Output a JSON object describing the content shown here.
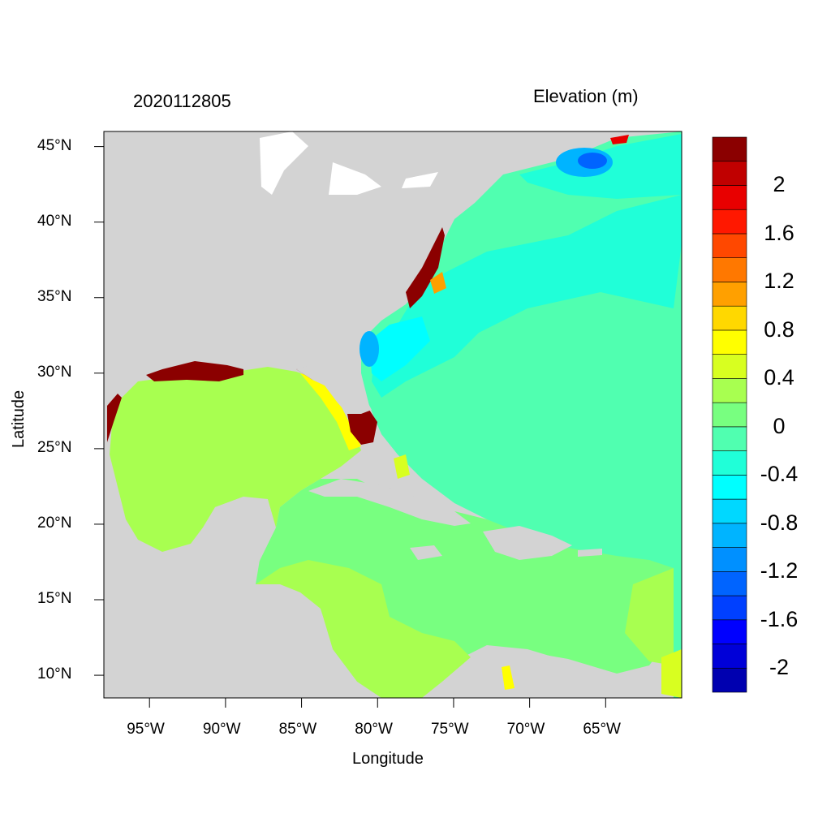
{
  "map": {
    "datetime": "2020112805",
    "field_label": "Elevation (m)",
    "xlabel": "Longitude",
    "ylabel": "Latitude",
    "lon_range": [
      -98,
      -60
    ],
    "lat_range": [
      8.5,
      46
    ],
    "lat_ticks": [
      {
        "value": 45,
        "label": "45°N"
      },
      {
        "value": 40,
        "label": "40°N"
      },
      {
        "value": 35,
        "label": "35°N"
      },
      {
        "value": 30,
        "label": "30°N"
      },
      {
        "value": 25,
        "label": "25°N"
      },
      {
        "value": 20,
        "label": "20°N"
      },
      {
        "value": 15,
        "label": "15°N"
      },
      {
        "value": 10,
        "label": "10°N"
      }
    ],
    "lon_ticks": [
      {
        "value": -95,
        "label": "95°W"
      },
      {
        "value": -90,
        "label": "90°W"
      },
      {
        "value": -85,
        "label": "85°W"
      },
      {
        "value": -80,
        "label": "80°W"
      },
      {
        "value": -75,
        "label": "75°W"
      },
      {
        "value": -70,
        "label": "70°W"
      },
      {
        "value": -65,
        "label": "65°W"
      }
    ],
    "land_color": "#d3d3d3"
  },
  "colorbar": {
    "colors": [
      "#0000b0",
      "#0000d8",
      "#0000ff",
      "#0040ff",
      "#0064ff",
      "#0090ff",
      "#00b4ff",
      "#00d8ff",
      "#00ffff",
      "#20ffd8",
      "#50ffb0",
      "#78ff80",
      "#a8ff50",
      "#d8ff20",
      "#ffff00",
      "#ffd800",
      "#ffa000",
      "#ff7800",
      "#ff4800",
      "#ff1800",
      "#e80000",
      "#c00000",
      "#8b0000"
    ],
    "labels": [
      "-2",
      "-1.6",
      "-1.2",
      "-0.8",
      "-0.4",
      "0",
      "0.4",
      "0.8",
      "1.2",
      "1.6",
      "2"
    ]
  }
}
